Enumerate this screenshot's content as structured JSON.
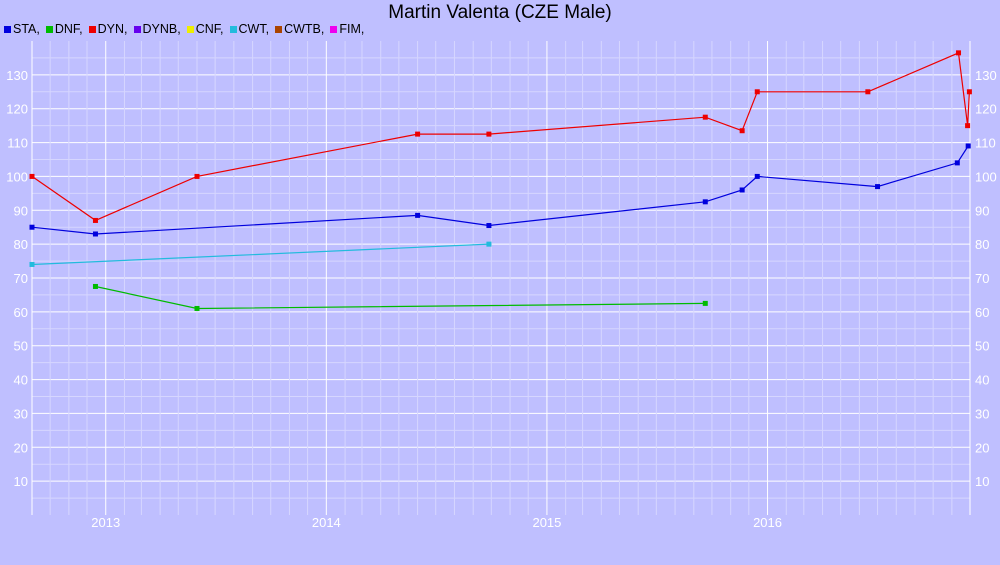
{
  "chart_data": {
    "type": "line",
    "title": "Martin Valenta (CZE Male)",
    "legend": [
      {
        "label": "STA,",
        "color": "#0000dd"
      },
      {
        "label": "DNF,",
        "color": "#00bb00"
      },
      {
        "label": "DYN,",
        "color": "#ee0000"
      },
      {
        "label": "DYNB,",
        "color": "#6600ee"
      },
      {
        "label": "CNF,",
        "color": "#eeee00"
      },
      {
        "label": "CWT,",
        "color": "#22bbdd"
      },
      {
        "label": "CWTB,",
        "color": "#aa4400"
      },
      {
        "label": "FIM,",
        "color": "#ee00ee"
      }
    ],
    "legend_position": "top-left",
    "x_axis": {
      "type": "date",
      "range": [
        "2012-09-01",
        "2016-12-01"
      ],
      "tick_labels": [
        "2013",
        "2014",
        "2015",
        "2016"
      ]
    },
    "y_axis": {
      "range": [
        0,
        140
      ],
      "tick_labels": [
        "10",
        "20",
        "30",
        "40",
        "50",
        "60",
        "70",
        "80",
        "90",
        "100",
        "110",
        "120",
        "130"
      ],
      "both_sides": true
    },
    "grid": true,
    "series": [
      {
        "name": "STA",
        "color": "#0000dd",
        "points": [
          [
            "2012-09-01",
            85
          ],
          [
            "2012-12-15",
            83
          ],
          [
            "2014-06-01",
            88.5
          ],
          [
            "2014-09-27",
            85.5
          ],
          [
            "2015-09-20",
            92.5
          ],
          [
            "2015-11-20",
            96
          ],
          [
            "2015-12-15",
            100
          ],
          [
            "2016-07-01",
            97
          ],
          [
            "2016-11-10",
            104
          ],
          [
            "2016-11-28",
            109
          ]
        ]
      },
      {
        "name": "DNF",
        "color": "#00bb00",
        "points": [
          [
            "2012-12-15",
            67.5
          ],
          [
            "2013-06-01",
            61
          ],
          [
            "2015-09-20",
            62.5
          ]
        ]
      },
      {
        "name": "DYN",
        "color": "#ee0000",
        "points": [
          [
            "2012-09-01",
            100
          ],
          [
            "2012-12-15",
            87
          ],
          [
            "2013-06-01",
            100
          ],
          [
            "2014-06-01",
            112.5
          ],
          [
            "2014-09-27",
            112.5
          ],
          [
            "2015-09-20",
            117.5
          ],
          [
            "2015-11-20",
            113.5
          ],
          [
            "2015-12-15",
            125
          ],
          [
            "2016-06-15",
            125
          ],
          [
            "2016-11-12",
            136.5
          ],
          [
            "2016-11-27",
            115
          ],
          [
            "2016-11-30",
            125
          ]
        ]
      },
      {
        "name": "CWT",
        "color": "#22bbdd",
        "points": [
          [
            "2012-09-01",
            74
          ],
          [
            "2014-09-27",
            80
          ]
        ]
      }
    ]
  }
}
